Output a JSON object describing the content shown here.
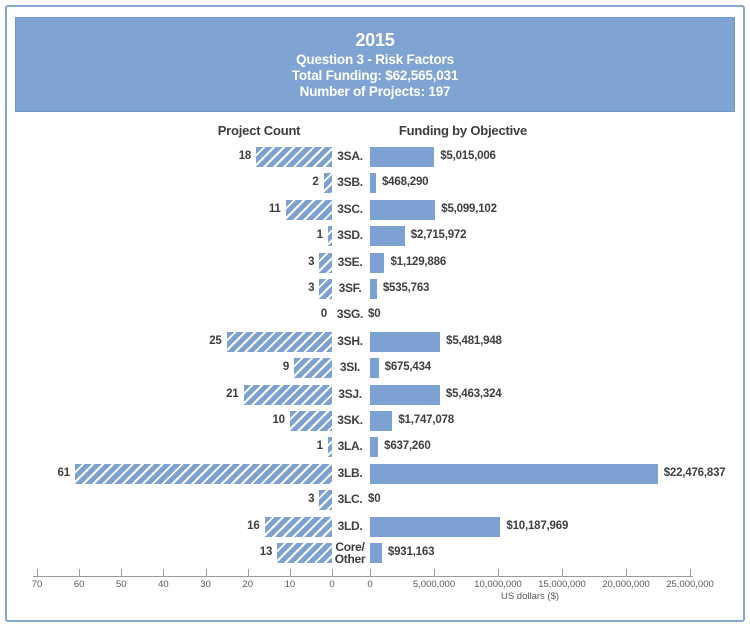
{
  "header": {
    "year": "2015",
    "subtitle": "Question 3 - Risk Factors",
    "total_funding": "Total Funding: $62,565,031",
    "num_projects": "Number of Projects: 197"
  },
  "columns": {
    "left": "Project Count",
    "right": "Funding by Objective"
  },
  "chart_data": {
    "type": "bar",
    "orientation": "horizontal-diverging",
    "categories": [
      "3SA.",
      "3SB.",
      "3SC.",
      "3SD.",
      "3SE.",
      "3SF.",
      "3SG.",
      "3SH.",
      "3SI.",
      "3SJ.",
      "3SK.",
      "3LA.",
      "3LB.",
      "3LC.",
      "3LD.",
      "Core/\nOther"
    ],
    "series": [
      {
        "name": "Project Count",
        "values": [
          18,
          2,
          11,
          1,
          3,
          3,
          0,
          25,
          9,
          21,
          10,
          1,
          61,
          3,
          16,
          13
        ]
      },
      {
        "name": "Funding by Objective",
        "values": [
          5015006,
          468290,
          5099102,
          2715972,
          1129886,
          535763,
          0,
          5481948,
          675434,
          5463324,
          1747078,
          637260,
          22476837,
          0,
          10187969,
          931163
        ]
      }
    ],
    "value_labels": [
      "$5,015,006",
      "$468,290",
      "$5,099,102",
      "$2,715,972",
      "$1,129,886",
      "$535,763",
      "$0",
      "$5,481,948",
      "$675,434",
      "$5,463,324",
      "$1,747,078",
      "$637,260",
      "$22,476,837",
      "$0",
      "$10,187,969",
      "$931,163"
    ],
    "left_axis": {
      "ticks": [
        70,
        60,
        50,
        40,
        30,
        20,
        10,
        0
      ],
      "max": 70
    },
    "right_axis": {
      "ticks": [
        0,
        5000000,
        10000000,
        15000000,
        20000000,
        25000000
      ],
      "tick_labels": [
        "0",
        "5,000,000",
        "10,000,000",
        "15,000,000",
        "20,000,000",
        "25,000,000"
      ],
      "max": 25000000,
      "label": "US dollars ($)"
    },
    "legend": "none",
    "grid": "off",
    "colors": {
      "bar": "#7ca1d2",
      "banner": "#7fa3d2",
      "frame_border": "#84a7d4",
      "label_text": "#3f3f3f",
      "axis_text": "#595959"
    }
  }
}
